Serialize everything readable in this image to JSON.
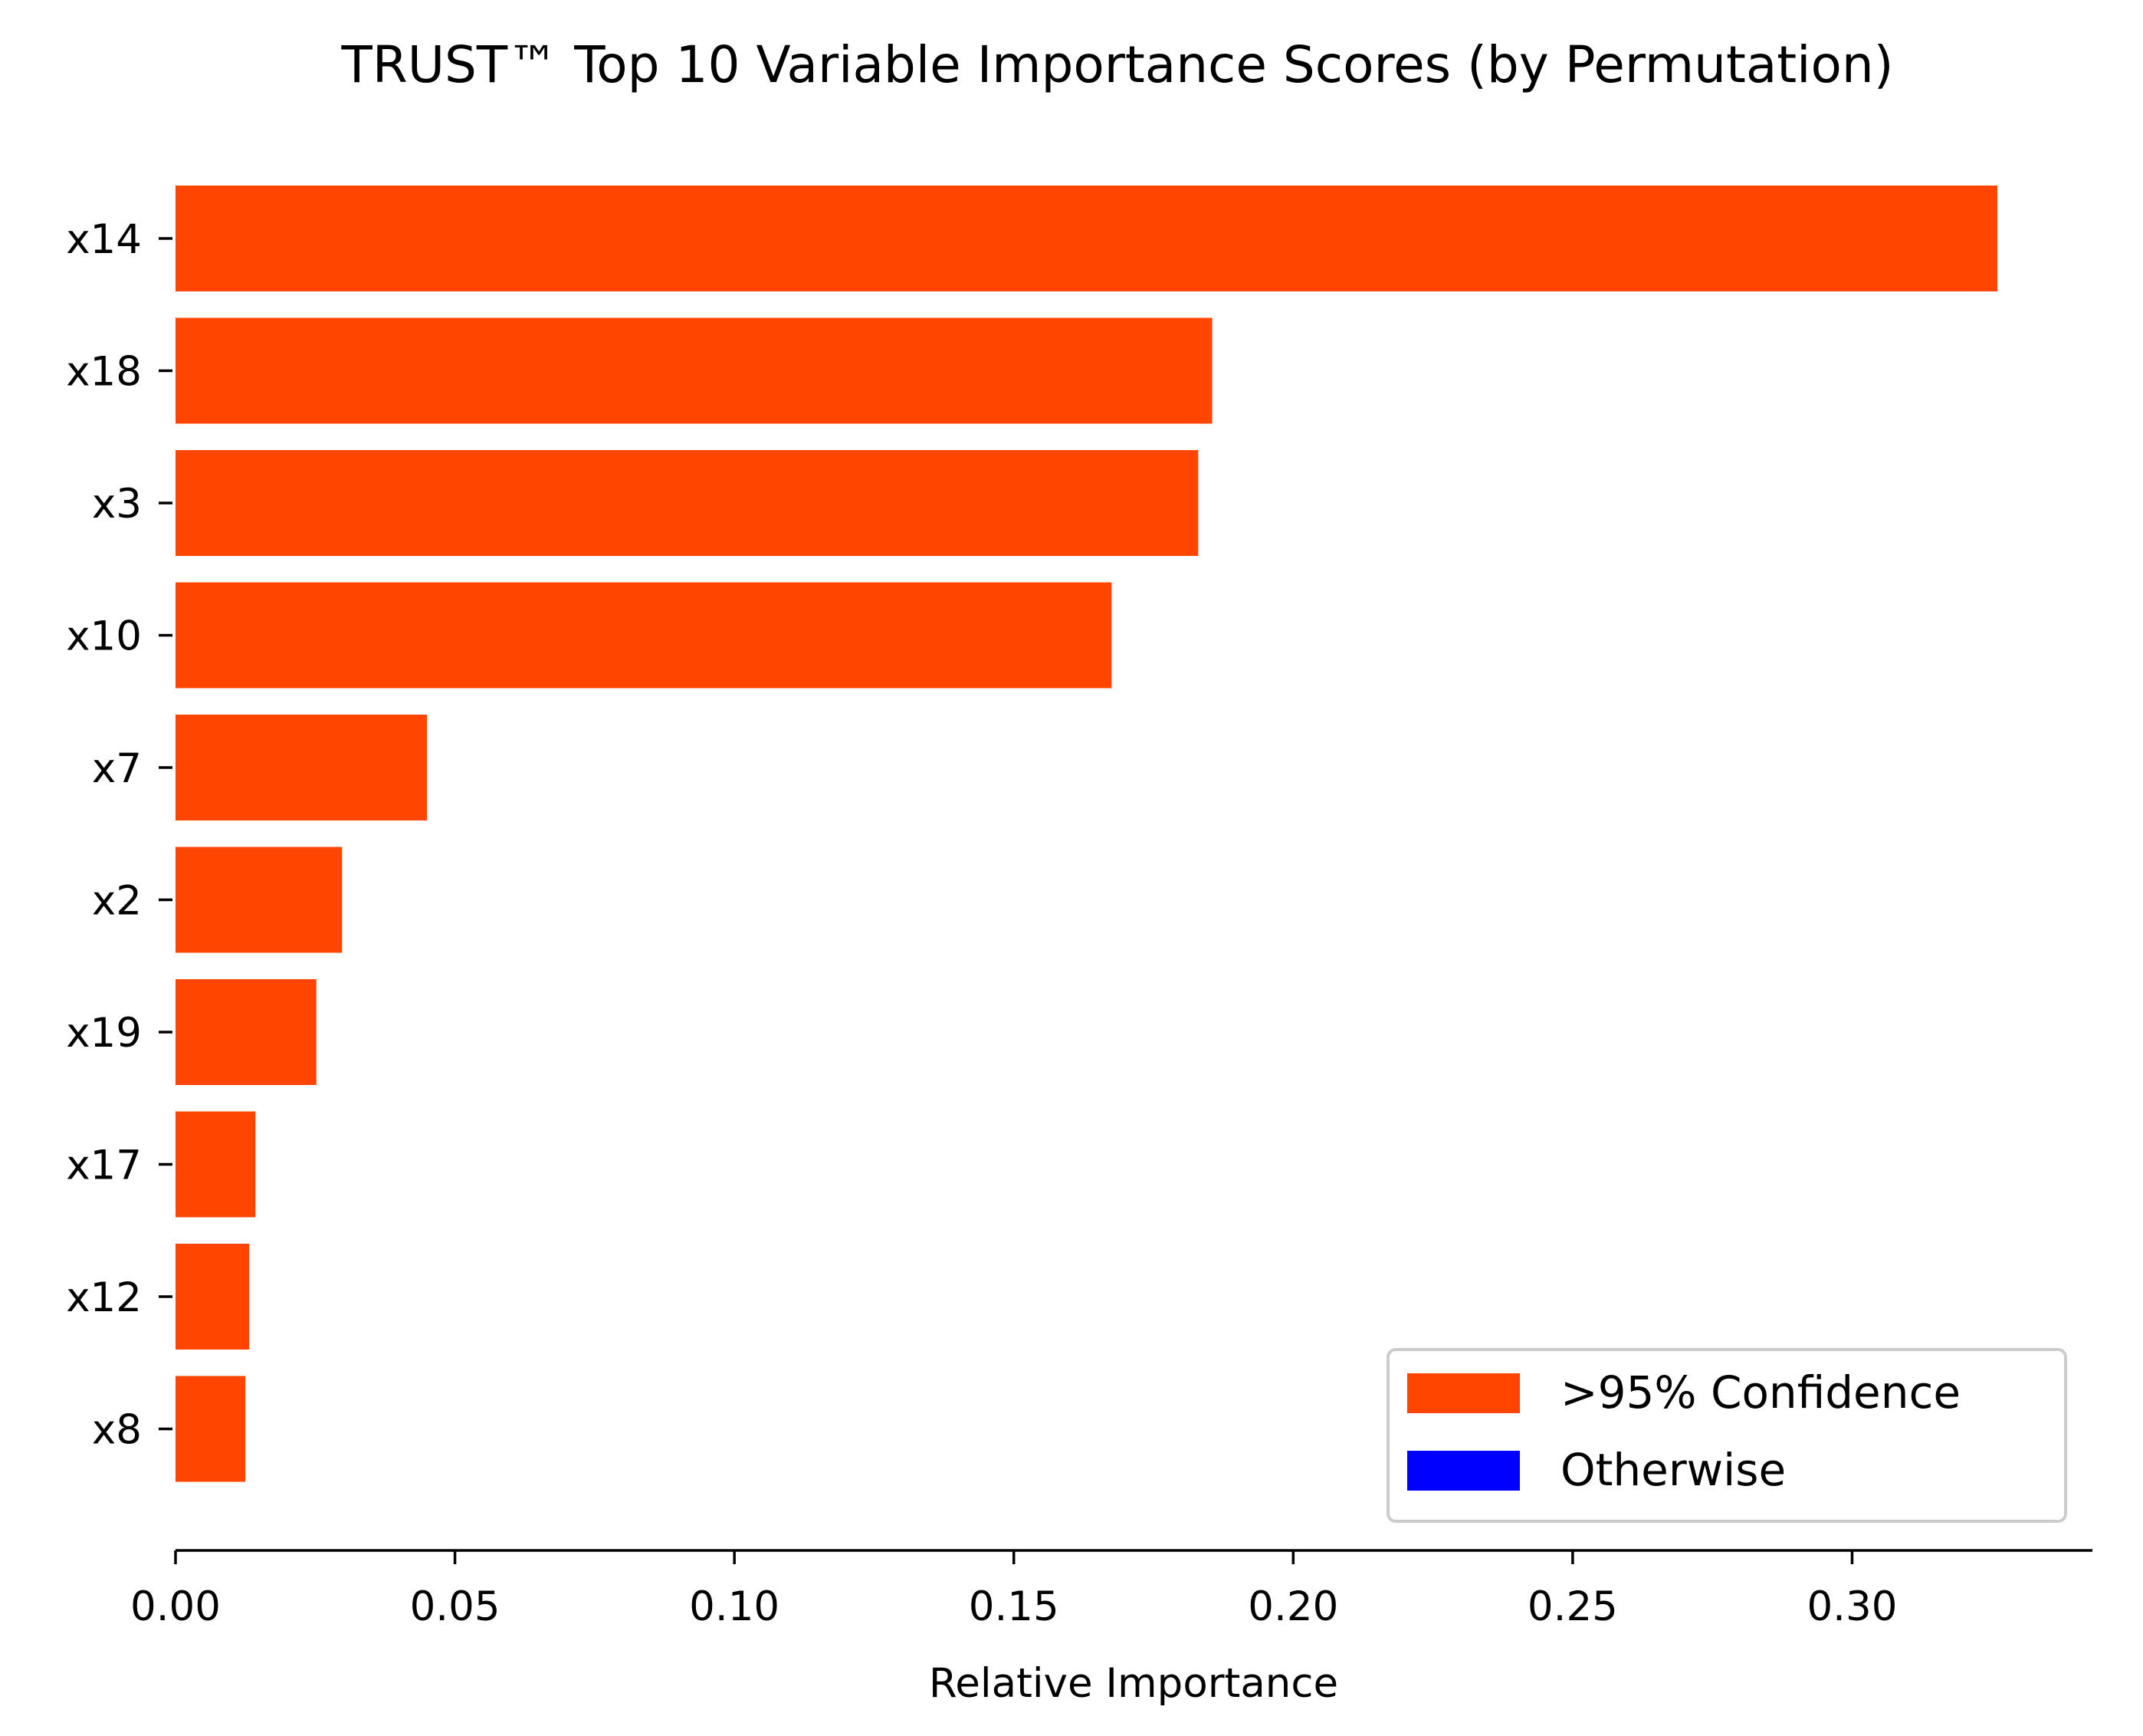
{
  "chart_data": {
    "type": "bar",
    "orientation": "horizontal",
    "title": "TRUST™ Top 10 Variable Importance Scores (by Permutation)",
    "xlabel": "Relative Importance",
    "ylabel": "",
    "categories": [
      "x14",
      "x18",
      "x3",
      "x10",
      "x7",
      "x2",
      "x19",
      "x17",
      "x12",
      "x8"
    ],
    "values": [
      0.326,
      0.1855,
      0.183,
      0.1675,
      0.045,
      0.0298,
      0.0252,
      0.0143,
      0.0132,
      0.0125
    ],
    "significant": [
      true,
      true,
      true,
      true,
      true,
      true,
      true,
      true,
      true,
      true
    ],
    "xlim": [
      0,
      0.343
    ],
    "xticks": [
      0.0,
      0.05,
      0.1,
      0.15,
      0.2,
      0.25,
      0.3
    ],
    "xtick_labels": [
      "0.00",
      "0.05",
      "0.10",
      "0.15",
      "0.20",
      "0.25",
      "0.30"
    ],
    "grid": false,
    "legend": {
      "position": "bottom-right",
      "entries": [
        {
          "label": ">95% Confidence",
          "color": "#ff4500"
        },
        {
          "label": "Otherwise",
          "color": "#0000ff"
        }
      ]
    },
    "colors": {
      "significant": "#ff4500",
      "other": "#0000ff"
    }
  }
}
